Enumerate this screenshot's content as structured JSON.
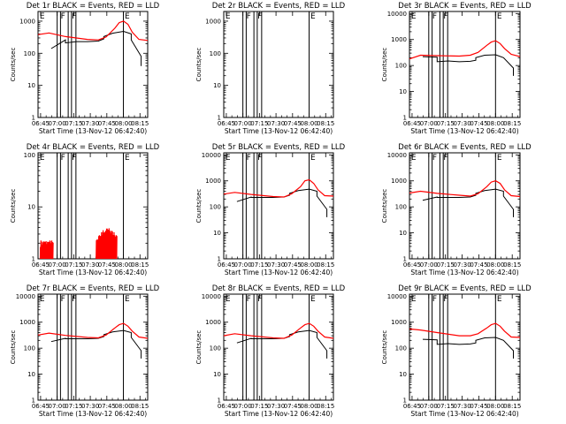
{
  "figure": {
    "background": "#ffffff",
    "colors": {
      "events": "#000000",
      "lld": "#ff0000",
      "axes": "#000000"
    }
  },
  "chart_data": [
    {
      "type": "line",
      "title": "Det 1r BLACK = Events, RED = LLD",
      "ylabel": "Counts/sec",
      "xlabel": "Start Time (13-Nov-12 06:42:40)",
      "xticks": [
        "06:45",
        "07:00",
        "07:15",
        "07:30",
        "07:45",
        "08:00",
        "08:15"
      ],
      "yscale": "log",
      "ylim": [
        1,
        2000
      ],
      "yticks": [
        "1",
        "10",
        "100",
        "1000"
      ],
      "markers": [
        {
          "label": "E",
          "time": "06:43"
        },
        {
          "label": "F",
          "time": "07:02"
        },
        {
          "label": "F",
          "time": "07:12"
        },
        {
          "label": "E",
          "time": "08:00"
        }
      ],
      "vlines": [
        "07:00",
        "07:03",
        "07:10",
        "07:13",
        "07:17",
        "08:00"
      ],
      "series": [
        {
          "key": "events",
          "ts": [
            0.12,
            0.25,
            0.25,
            0.35,
            0.45,
            0.55,
            0.6,
            0.6,
            0.68,
            0.78,
            0.85,
            0.85,
            0.94,
            0.94
          ],
          "vals": [
            140,
            260,
            210,
            230,
            230,
            240,
            280,
            330,
            420,
            480,
            400,
            260,
            80,
            40
          ],
          "gaps": [
            [
              0.94,
              0.98
            ]
          ]
        },
        {
          "key": "lld",
          "ts": [
            0.0,
            0.1,
            0.25,
            0.45,
            0.55,
            0.62,
            0.7,
            0.74,
            0.78,
            0.82,
            0.86,
            0.92,
            1.0
          ],
          "vals": [
            380,
            430,
            330,
            270,
            260,
            320,
            600,
            900,
            1000,
            800,
            450,
            270,
            250
          ],
          "gaps": []
        }
      ]
    },
    {
      "type": "line",
      "title": "Det 2r BLACK = Events, RED = LLD",
      "ylabel": "Counts/sec",
      "xlabel": "Start Time (13-Nov-12 06:42:40)",
      "xticks": [
        "06:45",
        "07:00",
        "07:15",
        "07:30",
        "07:45",
        "08:00",
        "08:15"
      ],
      "yscale": "log",
      "ylim": [
        1,
        2000
      ],
      "yticks": [
        "1",
        "10",
        "100",
        "1000"
      ],
      "markers": [
        {
          "label": "E",
          "time": "06:43"
        },
        {
          "label": "F",
          "time": "07:02"
        },
        {
          "label": "F",
          "time": "07:12"
        },
        {
          "label": "E",
          "time": "08:00"
        }
      ],
      "vlines": [
        "07:00",
        "07:03",
        "07:10",
        "07:13",
        "07:17",
        "08:00"
      ],
      "series": []
    },
    {
      "type": "line",
      "title": "Det 3r BLACK = Events, RED = LLD",
      "ylabel": "Counts/sec",
      "xlabel": "Start Time (13-Nov-12 06:42:40)",
      "xticks": [
        "06:45",
        "07:00",
        "07:15",
        "07:30",
        "07:45",
        "08:00",
        "08:15"
      ],
      "yscale": "log",
      "ylim": [
        1,
        12000
      ],
      "yticks": [
        "1",
        "10",
        "100",
        "1000",
        "10000"
      ],
      "markers": [
        {
          "label": "E",
          "time": "06:43"
        },
        {
          "label": "F",
          "time": "07:02"
        },
        {
          "label": "F",
          "time": "07:12"
        },
        {
          "label": "E",
          "time": "08:00"
        }
      ],
      "vlines": [
        "07:00",
        "07:03",
        "07:10",
        "07:13",
        "07:17",
        "08:00"
      ],
      "series": [
        {
          "key": "events",
          "ts": [
            0.12,
            0.25,
            0.25,
            0.35,
            0.45,
            0.55,
            0.6,
            0.6,
            0.68,
            0.78,
            0.85,
            0.85,
            0.94,
            0.94
          ],
          "vals": [
            220,
            210,
            140,
            150,
            140,
            145,
            160,
            200,
            250,
            260,
            200,
            200,
            80,
            40
          ],
          "gaps": [
            [
              0.94,
              0.98
            ]
          ]
        },
        {
          "key": "lld",
          "ts": [
            0.0,
            0.1,
            0.25,
            0.45,
            0.55,
            0.62,
            0.7,
            0.74,
            0.78,
            0.82,
            0.86,
            0.92,
            1.0
          ],
          "vals": [
            180,
            250,
            240,
            230,
            250,
            320,
            600,
            800,
            900,
            700,
            450,
            270,
            220
          ],
          "gaps": []
        }
      ]
    },
    {
      "type": "line",
      "title": "Det 4r BLACK = Events, RED = LLD",
      "ylabel": "Counts/sec",
      "xlabel": "Start Time (13-Nov-12 06:42:40)",
      "xticks": [
        "06:45",
        "07:00",
        "07:15",
        "07:30",
        "07:45",
        "08:00",
        "08:15"
      ],
      "yscale": "log",
      "ylim": [
        1,
        110
      ],
      "yticks": [
        "1",
        "10",
        "100"
      ],
      "markers": [
        {
          "label": "E",
          "time": "06:43"
        },
        {
          "label": "F",
          "time": "07:02"
        },
        {
          "label": "F",
          "time": "07:12"
        },
        {
          "label": "E",
          "time": "08:00"
        }
      ],
      "vlines": [
        "07:00",
        "07:03",
        "07:10",
        "07:13",
        "07:17",
        "08:00"
      ],
      "series": [
        {
          "key": "lld",
          "ts": [
            0.02,
            0.08,
            0.14
          ],
          "vals": [
            2,
            2,
            2
          ],
          "gaps": [],
          "noise": true
        },
        {
          "key": "lld",
          "ts": [
            0.53,
            0.56,
            0.6,
            0.64,
            0.68,
            0.72
          ],
          "vals": [
            2,
            2.6,
            3.3,
            3.5,
            3,
            2.4
          ],
          "gaps": [],
          "noise": true
        }
      ]
    },
    {
      "type": "line",
      "title": "Det 5r BLACK = Events, RED = LLD",
      "ylabel": "Counts/sec",
      "xlabel": "Start Time (13-Nov-12 06:42:40)",
      "xticks": [
        "06:45",
        "07:00",
        "07:15",
        "07:30",
        "07:45",
        "08:00",
        "08:15"
      ],
      "yscale": "log",
      "ylim": [
        1,
        12000
      ],
      "yticks": [
        "1",
        "10",
        "100",
        "1000",
        "10000"
      ],
      "markers": [
        {
          "label": "E",
          "time": "06:43"
        },
        {
          "label": "F",
          "time": "07:02"
        },
        {
          "label": "F",
          "time": "07:12"
        },
        {
          "label": "E",
          "time": "08:00"
        }
      ],
      "vlines": [
        "07:00",
        "07:03",
        "07:10",
        "07:13",
        "07:17",
        "08:00"
      ],
      "series": [
        {
          "key": "events",
          "ts": [
            0.12,
            0.25,
            0.25,
            0.35,
            0.45,
            0.55,
            0.6,
            0.6,
            0.68,
            0.78,
            0.85,
            0.85,
            0.94,
            0.94
          ],
          "vals": [
            160,
            240,
            230,
            230,
            230,
            240,
            280,
            330,
            420,
            480,
            400,
            260,
            80,
            40
          ],
          "gaps": [
            [
              0.94,
              0.98
            ]
          ]
        },
        {
          "key": "lld",
          "ts": [
            0.0,
            0.1,
            0.25,
            0.45,
            0.55,
            0.62,
            0.7,
            0.74,
            0.78,
            0.82,
            0.86,
            0.92,
            1.0
          ],
          "vals": [
            310,
            360,
            300,
            250,
            240,
            320,
            600,
            1000,
            1100,
            800,
            450,
            270,
            260
          ],
          "gaps": []
        }
      ]
    },
    {
      "type": "line",
      "title": "Det 6r BLACK = Events, RED = LLD",
      "ylabel": "Counts/sec",
      "xlabel": "Start Time (13-Nov-12 06:42:40)",
      "xticks": [
        "06:45",
        "07:00",
        "07:15",
        "07:30",
        "07:45",
        "08:00",
        "08:15"
      ],
      "yscale": "log",
      "ylim": [
        1,
        12000
      ],
      "yticks": [
        "1",
        "10",
        "100",
        "1000",
        "10000"
      ],
      "markers": [
        {
          "label": "E",
          "time": "06:43"
        },
        {
          "label": "F",
          "time": "07:02"
        },
        {
          "label": "F",
          "time": "07:12"
        },
        {
          "label": "E",
          "time": "08:00"
        }
      ],
      "vlines": [
        "07:00",
        "07:03",
        "07:10",
        "07:13",
        "07:17",
        "08:00"
      ],
      "series": [
        {
          "key": "events",
          "ts": [
            0.12,
            0.25,
            0.25,
            0.35,
            0.45,
            0.55,
            0.6,
            0.6,
            0.68,
            0.78,
            0.85,
            0.85,
            0.94,
            0.94
          ],
          "vals": [
            180,
            240,
            230,
            230,
            230,
            240,
            280,
            330,
            420,
            480,
            400,
            260,
            80,
            40
          ],
          "gaps": [
            [
              0.94,
              0.98
            ]
          ]
        },
        {
          "key": "lld",
          "ts": [
            0.0,
            0.1,
            0.25,
            0.45,
            0.55,
            0.62,
            0.7,
            0.74,
            0.78,
            0.82,
            0.86,
            0.92,
            1.0
          ],
          "vals": [
            340,
            400,
            330,
            280,
            260,
            320,
            600,
            900,
            1000,
            800,
            450,
            270,
            250
          ],
          "gaps": []
        }
      ]
    },
    {
      "type": "line",
      "title": "Det 7r BLACK = Events, RED = LLD",
      "ylabel": "Counts/sec",
      "xlabel": "Start Time (13-Nov-12 06:42:40)",
      "xticks": [
        "06:45",
        "07:00",
        "07:15",
        "07:30",
        "07:45",
        "08:00",
        "08:15"
      ],
      "yscale": "log",
      "ylim": [
        1,
        12000
      ],
      "yticks": [
        "1",
        "10",
        "100",
        "1000",
        "10000"
      ],
      "markers": [
        {
          "label": "E",
          "time": "06:43"
        },
        {
          "label": "F",
          "time": "07:02"
        },
        {
          "label": "F",
          "time": "07:12"
        },
        {
          "label": "E",
          "time": "08:00"
        }
      ],
      "vlines": [
        "07:00",
        "07:03",
        "07:10",
        "07:13",
        "07:17",
        "08:00"
      ],
      "series": [
        {
          "key": "events",
          "ts": [
            0.12,
            0.25,
            0.25,
            0.35,
            0.45,
            0.55,
            0.6,
            0.6,
            0.68,
            0.78,
            0.85,
            0.85,
            0.94,
            0.94
          ],
          "vals": [
            180,
            240,
            230,
            230,
            230,
            240,
            280,
            330,
            420,
            480,
            400,
            260,
            80,
            40
          ],
          "gaps": [
            [
              0.94,
              0.98
            ]
          ]
        },
        {
          "key": "lld",
          "ts": [
            0.0,
            0.1,
            0.25,
            0.45,
            0.55,
            0.62,
            0.7,
            0.74,
            0.78,
            0.82,
            0.86,
            0.92,
            1.0
          ],
          "vals": [
            320,
            380,
            310,
            260,
            250,
            320,
            600,
            800,
            900,
            700,
            450,
            270,
            240
          ],
          "gaps": []
        }
      ]
    },
    {
      "type": "line",
      "title": "Det 8r BLACK = Events, RED = LLD",
      "ylabel": "Counts/sec",
      "xlabel": "Start Time (13-Nov-12 06:42:40)",
      "xticks": [
        "06:45",
        "07:00",
        "07:15",
        "07:30",
        "07:45",
        "08:00",
        "08:15"
      ],
      "yscale": "log",
      "ylim": [
        1,
        12000
      ],
      "yticks": [
        "1",
        "10",
        "100",
        "1000",
        "10000"
      ],
      "markers": [
        {
          "label": "E",
          "time": "06:43"
        },
        {
          "label": "F",
          "time": "07:02"
        },
        {
          "label": "F",
          "time": "07:12"
        },
        {
          "label": "E",
          "time": "08:00"
        }
      ],
      "vlines": [
        "07:00",
        "07:03",
        "07:10",
        "07:13",
        "07:17",
        "08:00"
      ],
      "series": [
        {
          "key": "events",
          "ts": [
            0.12,
            0.25,
            0.25,
            0.35,
            0.45,
            0.55,
            0.6,
            0.6,
            0.68,
            0.78,
            0.85,
            0.85,
            0.94,
            0.94
          ],
          "vals": [
            160,
            240,
            230,
            230,
            230,
            240,
            280,
            330,
            420,
            480,
            400,
            260,
            80,
            40
          ],
          "gaps": [
            [
              0.94,
              0.98
            ]
          ]
        },
        {
          "key": "lld",
          "ts": [
            0.0,
            0.1,
            0.25,
            0.45,
            0.55,
            0.62,
            0.7,
            0.74,
            0.78,
            0.82,
            0.86,
            0.92,
            1.0
          ],
          "vals": [
            300,
            360,
            300,
            250,
            240,
            320,
            600,
            800,
            900,
            700,
            450,
            270,
            240
          ],
          "gaps": []
        }
      ]
    },
    {
      "type": "line",
      "title": "Det 9r BLACK = Events, RED = LLD",
      "ylabel": "Counts/sec",
      "xlabel": "Start Time (13-Nov-12 06:42:40)",
      "xticks": [
        "06:45",
        "07:00",
        "07:15",
        "07:30",
        "07:45",
        "08:00",
        "08:15"
      ],
      "yscale": "log",
      "ylim": [
        1,
        12000
      ],
      "yticks": [
        "1",
        "10",
        "100",
        "1000",
        "10000"
      ],
      "markers": [
        {
          "label": "E",
          "time": "06:43"
        },
        {
          "label": "F",
          "time": "07:02"
        },
        {
          "label": "F",
          "time": "07:12"
        },
        {
          "label": "E",
          "time": "08:00"
        }
      ],
      "vlines": [
        "07:00",
        "07:03",
        "07:10",
        "07:13",
        "07:17",
        "08:00"
      ],
      "series": [
        {
          "key": "events",
          "ts": [
            0.12,
            0.25,
            0.25,
            0.35,
            0.45,
            0.55,
            0.6,
            0.6,
            0.68,
            0.78,
            0.85,
            0.85,
            0.94,
            0.94
          ],
          "vals": [
            220,
            210,
            140,
            150,
            140,
            145,
            160,
            200,
            250,
            260,
            200,
            200,
            80,
            40
          ],
          "gaps": [
            [
              0.94,
              0.98
            ]
          ]
        },
        {
          "key": "lld",
          "ts": [
            0.0,
            0.1,
            0.25,
            0.45,
            0.55,
            0.62,
            0.7,
            0.74,
            0.78,
            0.82,
            0.86,
            0.92,
            1.0
          ],
          "vals": [
            550,
            500,
            400,
            300,
            300,
            360,
            600,
            800,
            900,
            700,
            450,
            270,
            260
          ],
          "gaps": []
        }
      ]
    }
  ]
}
